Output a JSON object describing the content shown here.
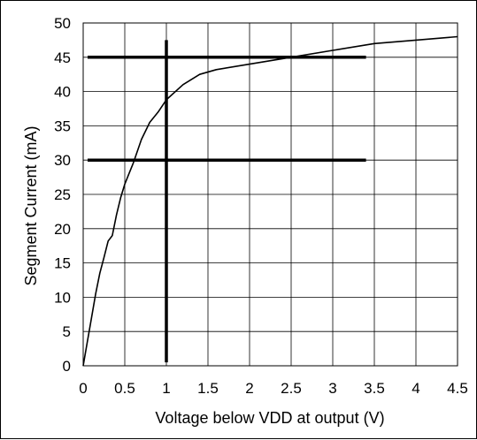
{
  "chart_data": {
    "type": "line",
    "title": "",
    "xlabel": "Voltage below VDD at output (V)",
    "ylabel": "Segment Current (mA)",
    "xlim": [
      0,
      4.5
    ],
    "ylim": [
      0,
      50
    ],
    "x_ticks": [
      0,
      0.5,
      1,
      1.5,
      2,
      2.5,
      3,
      3.5,
      4,
      4.5
    ],
    "x_tick_labels": [
      "0",
      "0.5",
      "1",
      "1.5",
      "2",
      "2.5",
      "3",
      "3.5",
      "4",
      "4.5"
    ],
    "y_ticks": [
      0,
      5,
      10,
      15,
      20,
      25,
      30,
      35,
      40,
      45,
      50
    ],
    "y_tick_labels": [
      "0",
      "5",
      "10",
      "15",
      "20",
      "25",
      "30",
      "35",
      "40",
      "45",
      "50"
    ],
    "grid": true,
    "legend": "none",
    "series": [
      {
        "x": [
          0,
          0.05,
          0.1,
          0.15,
          0.2,
          0.25,
          0.3,
          0.35,
          0.4,
          0.45,
          0.5,
          0.55,
          0.6,
          0.7,
          0.8,
          0.9,
          1.0,
          1.2,
          1.4,
          1.6,
          2.0,
          2.5,
          3.0,
          3.5,
          4.0,
          4.5
        ],
        "y": [
          0,
          3.5,
          7,
          10.5,
          13.5,
          15.8,
          18.2,
          19,
          22,
          24.5,
          26.5,
          28,
          29.5,
          33,
          35.5,
          37,
          38.8,
          41,
          42.5,
          43.2,
          44,
          45,
          46,
          47,
          47.5,
          48
        ],
        "color": "#000000"
      }
    ],
    "reference_lines": [
      {
        "orientation": "horizontal",
        "y": 45,
        "x_range": [
          0,
          3.4
        ]
      },
      {
        "orientation": "horizontal",
        "y": 30,
        "x_range": [
          0,
          3.4
        ]
      },
      {
        "orientation": "vertical",
        "x": 1,
        "y_range": [
          0.5,
          47.5
        ]
      }
    ]
  }
}
